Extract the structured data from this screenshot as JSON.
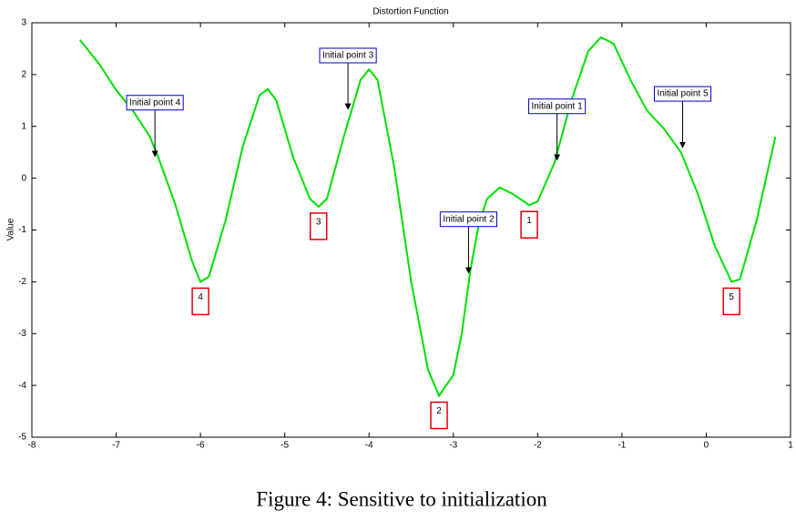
{
  "chart_data": {
    "type": "line",
    "title": "Distortion Function",
    "y_label": "Value",
    "x": [
      -7.43,
      -7.2,
      -7.0,
      -6.8,
      -6.6,
      -6.5,
      -6.3,
      -6.1,
      -6.0,
      -5.9,
      -5.7,
      -5.5,
      -5.3,
      -5.2,
      -5.1,
      -4.9,
      -4.7,
      -4.6,
      -4.5,
      -4.3,
      -4.1,
      -4.0,
      -3.9,
      -3.7,
      -3.5,
      -3.3,
      -3.17,
      -3.0,
      -2.9,
      -2.8,
      -2.7,
      -2.6,
      -2.45,
      -2.3,
      -2.1,
      -2.0,
      -1.8,
      -1.6,
      -1.4,
      -1.25,
      -1.1,
      -0.9,
      -0.7,
      -0.5,
      -0.3,
      -0.1,
      0.1,
      0.3,
      0.4,
      0.6,
      0.82
    ],
    "series": [
      {
        "color": "#00e000",
        "values": [
          2.67,
          2.2,
          1.7,
          1.3,
          0.8,
          0.4,
          -0.5,
          -1.6,
          -2.0,
          -1.9,
          -0.8,
          0.6,
          1.6,
          1.72,
          1.5,
          0.4,
          -0.4,
          -0.55,
          -0.4,
          0.8,
          1.9,
          2.1,
          1.9,
          0.2,
          -2.0,
          -3.7,
          -4.2,
          -3.8,
          -3.0,
          -1.8,
          -0.9,
          -0.4,
          -0.18,
          -0.3,
          -0.52,
          -0.45,
          0.3,
          1.5,
          2.45,
          2.72,
          2.6,
          1.9,
          1.3,
          0.95,
          0.5,
          -0.3,
          -1.3,
          -2.0,
          -1.95,
          -0.8,
          0.8
        ]
      }
    ],
    "xlim": [
      -8,
      1
    ],
    "xticks": [
      -8,
      -7,
      -6,
      -5,
      -4,
      -3,
      -2,
      -1,
      0,
      1
    ],
    "ylim": [
      -5,
      3
    ],
    "yticks": [
      -5,
      -4,
      -3,
      -2,
      -1,
      0,
      1,
      2,
      3
    ],
    "initial_points": [
      {
        "text": "Initial point 4",
        "x": -6.54,
        "y": 0.42
      },
      {
        "text": "Initial point 3",
        "x": -4.25,
        "y": 1.33
      },
      {
        "text": "Initial point 2",
        "x": -2.82,
        "y": -1.83
      },
      {
        "text": "Initial point 1",
        "x": -1.77,
        "y": 0.35
      },
      {
        "text": "Initial point 5",
        "x": -0.28,
        "y": 0.59
      }
    ],
    "minima": [
      {
        "text": "4",
        "x": -6.0,
        "y": -2.0
      },
      {
        "text": "3",
        "x": -4.6,
        "y": -0.55
      },
      {
        "text": "2",
        "x": -3.17,
        "y": -4.2
      },
      {
        "text": "1",
        "x": -2.1,
        "y": -0.52
      },
      {
        "text": "5",
        "x": 0.3,
        "y": -2.0
      }
    ]
  },
  "caption": "Figure 4: Sensitive to initialization"
}
